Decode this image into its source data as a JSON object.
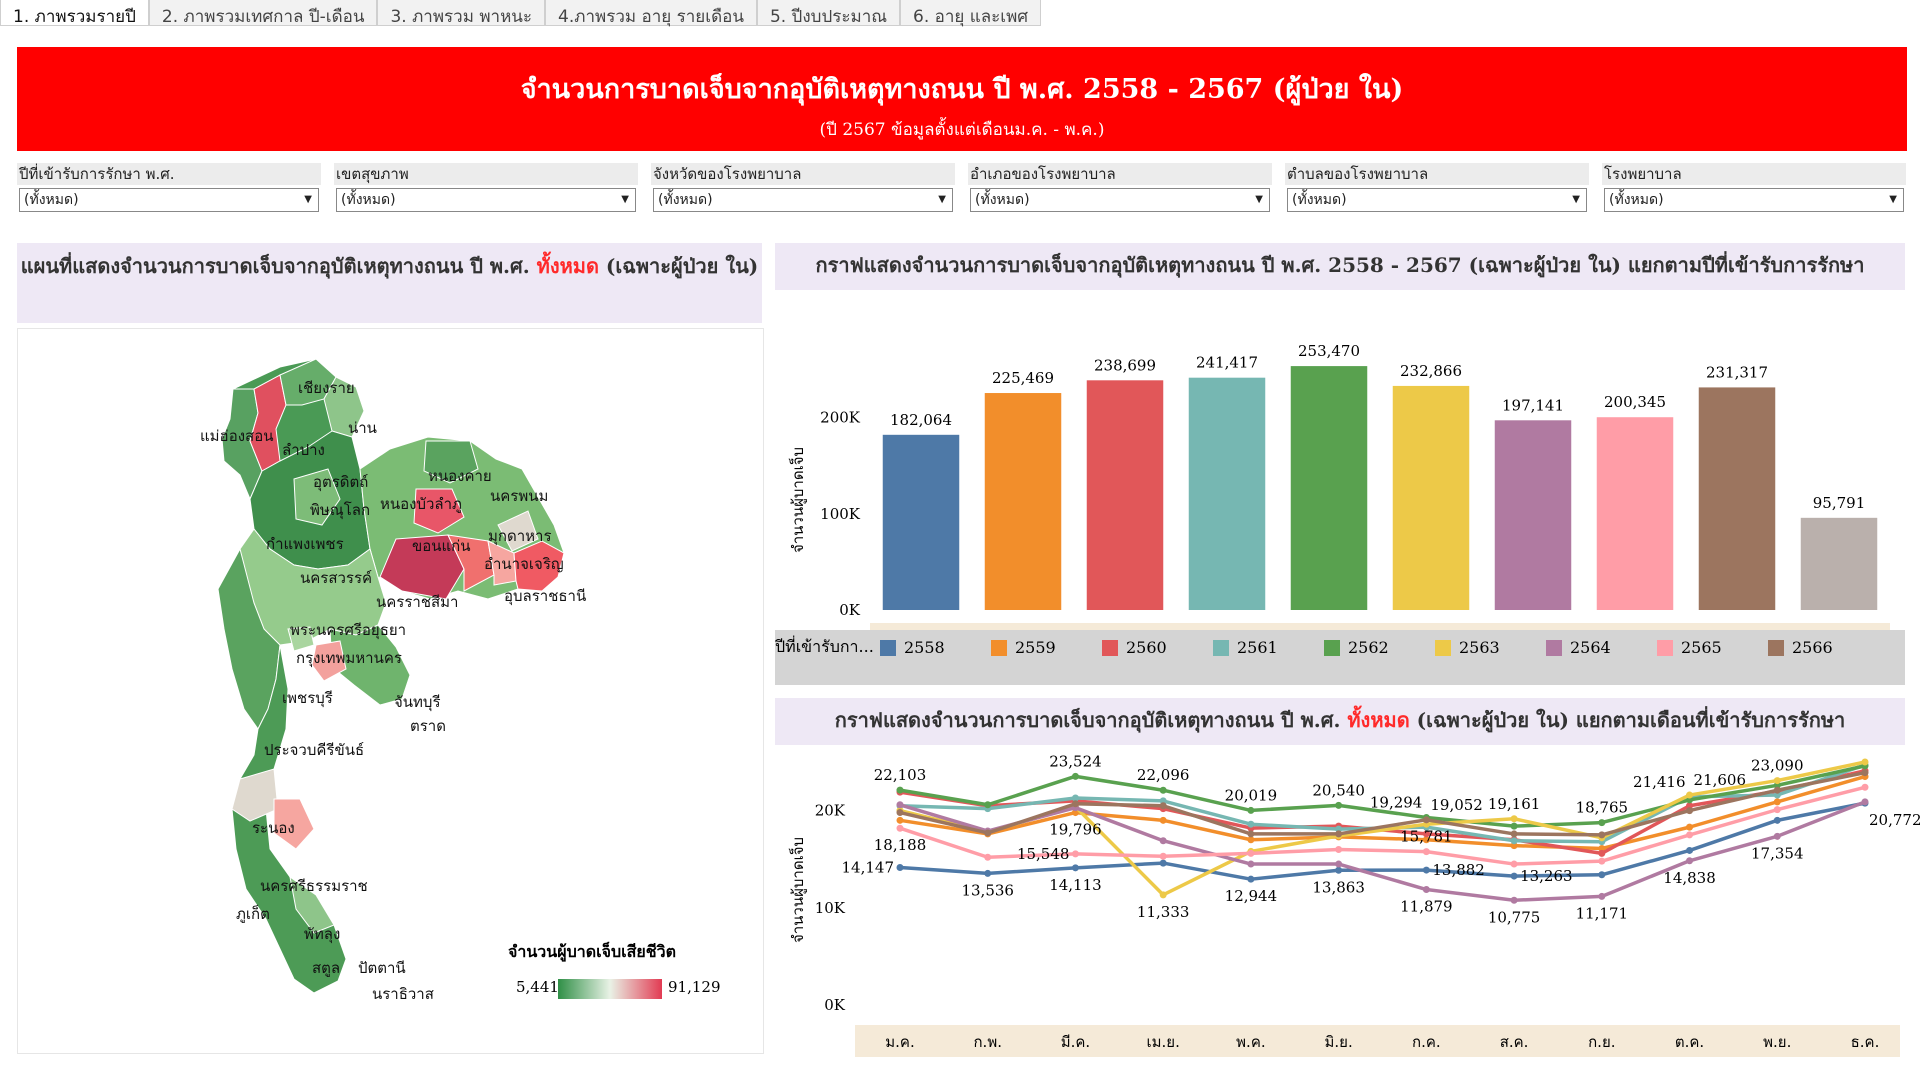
{
  "tabs": [
    "1. ภาพรวมรายปี",
    "2. ภาพรวมเทศกาล ปี-เดือน",
    "3. ภาพรวม พาหนะ",
    "4.ภาพรวม อายุ รายเดือน",
    "5. ปีงบประมาณ",
    "6. อายุ และเพศ"
  ],
  "banner": {
    "title": "จำนวนการบาดเจ็บจากอุบัติเหตุทางถนน ปี พ.ศ. 2558 - 2567 (ผู้ป่วย ใน)",
    "subtitle": "(ปี 2567 ข้อมูลตั้งแต่เดือนม.ค. - พ.ค.)"
  },
  "filters": [
    {
      "label": "ปีที่เข้ารับการรักษา พ.ศ.",
      "value": "(ทั้งหมด)"
    },
    {
      "label": "เขตสุขภาพ",
      "value": "(ทั้งหมด)"
    },
    {
      "label": "จังหวัดของโรงพยาบาล",
      "value": "(ทั้งหมด)"
    },
    {
      "label": "อำเภอของโรงพยาบาล",
      "value": "(ทั้งหมด)"
    },
    {
      "label": "ตำบลของโรงพยาบาล",
      "value": "(ทั้งหมด)"
    },
    {
      "label": "โรงพยาบาล",
      "value": "(ทั้งหมด)"
    }
  ],
  "map_panel": {
    "title_prefix": "แผนที่แสดงจำนวนการบาดเจ็บจากอุบัติเหตุทางถนน ปี พ.ศ.",
    "title_highlight": "ทั้งหมด",
    "title_suffix": "(เฉพาะผู้ป่วย ใน)",
    "legend_title": "จำนวนผู้บาดเจ็บเสียชีวิต",
    "legend_min": "5,441",
    "legend_max": "91,129",
    "provinces": [
      "เชียงราย",
      "แม่ฮ่องสอน",
      "น่าน",
      "ลำปาง",
      "หนองคาย",
      "อุตรดิตถ์",
      "นครพนม",
      "หนองบัวลำภู",
      "พิษณุโลก",
      "มุกดาหาร",
      "ขอนแก่น",
      "กำแพงเพชร",
      "อำนาจเจริญ",
      "นครสวรรค์",
      "อุบลราชธานี",
      "นครราชสีมา",
      "พระนครศรีอยุธยา",
      "กรุงเทพมหานคร",
      "เพชรบุรี",
      "จันทบุรี",
      "ตราด",
      "ประจวบคีรีขันธ์",
      "ระนอง",
      "นครศรีธรรมราช",
      "ภูเก็ต",
      "พัทลุง",
      "สตูล",
      "ปัตตานี",
      "นราธิวาส"
    ]
  },
  "bar_panel": {
    "title": "กราฟแสดงจำนวนการบาดเจ็บจากอุบัติเหตุทางถนน ปี พ.ศ. 2558 - 2567 (เฉพาะผู้ป่วย ใน) แยกตามปีที่เข้ารับการรักษา",
    "legend_label": "ปีที่เข้ารับกา..."
  },
  "line_panel": {
    "title_prefix": "กราฟแสดงจำนวนการบาดเจ็บจากอุบัติเหตุทางถนน ปี พ.ศ.",
    "title_highlight": "ทั้งหมด",
    "title_suffix": "(เฉพาะผู้ป่วย ใน) แยกตามเดือนที่เข้ารับการรักษา"
  },
  "colors": {
    "2558": "#4e79a7",
    "2559": "#f28e2b",
    "2560": "#e15759",
    "2561": "#76b7b2",
    "2562": "#59a14f",
    "2563": "#edc948",
    "2564": "#b07aa1",
    "2565": "#ff9da7",
    "2566": "#9c755f",
    "2567": "#bab0ac"
  },
  "chart_data": [
    {
      "type": "bar",
      "ylabel": "จำนวนผู้บาดเจ็บ",
      "categories": [
        "2558",
        "2559",
        "2560",
        "2561",
        "2562",
        "2563",
        "2564",
        "2565",
        "2566",
        "2567"
      ],
      "values": [
        182064,
        225469,
        238699,
        241417,
        253470,
        232866,
        197141,
        200345,
        231317,
        95791
      ],
      "value_labels": [
        "182,064",
        "225,469",
        "238,699",
        "241,417",
        "253,470",
        "232,866",
        "197,141",
        "200,345",
        "231,317",
        "95,791"
      ],
      "yticks": [
        "0K",
        "100K",
        "200K"
      ],
      "ylim": [
        0,
        265000
      ],
      "legend_entries": [
        "2558",
        "2559",
        "2560",
        "2561",
        "2562",
        "2563",
        "2564",
        "2565",
        "2566"
      ]
    },
    {
      "type": "line",
      "ylabel": "จำนวนผู้บาดเจ็บ",
      "categories": [
        "ม.ค.",
        "ก.พ.",
        "มี.ค.",
        "เม.ย.",
        "พ.ค.",
        "มิ.ย.",
        "ก.ค.",
        "ส.ค.",
        "ก.ย.",
        "ต.ค.",
        "พ.ย.",
        "ธ.ค."
      ],
      "yticks": [
        "0K",
        "10K",
        "20K"
      ],
      "ylim": [
        0,
        25000
      ],
      "series": [
        {
          "name": "2558",
          "values": [
            14147,
            13536,
            14113,
            14600,
            12944,
            13863,
            13882,
            13263,
            13400,
            15900,
            19000,
            20772
          ]
        },
        {
          "name": "2559",
          "values": [
            19000,
            17600,
            19796,
            19000,
            17000,
            17300,
            17000,
            16400,
            16100,
            18300,
            20900,
            23500
          ]
        },
        {
          "name": "2560",
          "values": [
            21900,
            20500,
            21000,
            20200,
            18200,
            18400,
            17600,
            17000,
            15600,
            20500,
            22000,
            24100
          ]
        },
        {
          "name": "2561",
          "values": [
            20500,
            20200,
            21300,
            21000,
            18600,
            18100,
            18300,
            16900,
            16800,
            21416,
            21606,
            24700
          ]
        },
        {
          "name": "2562",
          "values": [
            22103,
            20600,
            23524,
            22096,
            20019,
            20540,
            19294,
            18400,
            18765,
            21100,
            22600,
            24600
          ]
        },
        {
          "name": "2563",
          "values": [
            20000,
            17800,
            20400,
            11333,
            15800,
            17400,
            18600,
            19161,
            17200,
            21600,
            23090,
            25000
          ]
        },
        {
          "name": "2564",
          "values": [
            20600,
            17900,
            20300,
            16900,
            14500,
            14500,
            11879,
            10775,
            11171,
            14838,
            17354,
            20900
          ]
        },
        {
          "name": "2565",
          "values": [
            18188,
            15200,
            15548,
            15300,
            15600,
            16000,
            15781,
            14500,
            14800,
            17500,
            20100,
            22400
          ]
        },
        {
          "name": "2566",
          "values": [
            19800,
            17700,
            20700,
            20500,
            17600,
            17600,
            19052,
            17600,
            17500,
            20000,
            22100,
            23900
          ]
        }
      ],
      "labels": [
        {
          "text": "22,103",
          "cat": 0,
          "value": 22103,
          "pos": "above"
        },
        {
          "text": "23,524",
          "cat": 2,
          "value": 23524,
          "pos": "above"
        },
        {
          "text": "22,096",
          "cat": 3,
          "value": 22096,
          "pos": "above"
        },
        {
          "text": "20,019",
          "cat": 4,
          "value": 20019,
          "pos": "above"
        },
        {
          "text": "20,540",
          "cat": 5,
          "value": 20540,
          "pos": "above"
        },
        {
          "text": "19,294",
          "cat": 6,
          "value": 19294,
          "pos": "above-left"
        },
        {
          "text": "19,052",
          "cat": 6,
          "value": 19052,
          "pos": "above-right"
        },
        {
          "text": "19,161",
          "cat": 7,
          "value": 19161,
          "pos": "above"
        },
        {
          "text": "18,765",
          "cat": 8,
          "value": 18765,
          "pos": "above"
        },
        {
          "text": "21,416",
          "cat": 9,
          "value": 21416,
          "pos": "above-left"
        },
        {
          "text": "21,606",
          "cat": 9,
          "value": 21606,
          "pos": "above-right"
        },
        {
          "text": "23,090",
          "cat": 10,
          "value": 23090,
          "pos": "above"
        },
        {
          "text": "18,188",
          "cat": 0,
          "value": 18188,
          "pos": "below"
        },
        {
          "text": "19,796",
          "cat": 2,
          "value": 19796,
          "pos": "below"
        },
        {
          "text": "15,548",
          "cat": 2,
          "value": 15548,
          "pos": "left"
        },
        {
          "text": "15,781",
          "cat": 6,
          "value": 15781,
          "pos": "above"
        },
        {
          "text": "14,147",
          "cat": 0,
          "value": 14147,
          "pos": "left"
        },
        {
          "text": "13,536",
          "cat": 1,
          "value": 13536,
          "pos": "below"
        },
        {
          "text": "14,113",
          "cat": 2,
          "value": 14113,
          "pos": "below"
        },
        {
          "text": "11,333",
          "cat": 3,
          "value": 11333,
          "pos": "below"
        },
        {
          "text": "12,944",
          "cat": 4,
          "value": 12944,
          "pos": "below"
        },
        {
          "text": "13,863",
          "cat": 5,
          "value": 13863,
          "pos": "below"
        },
        {
          "text": "13,882",
          "cat": 6,
          "value": 13882,
          "pos": "right"
        },
        {
          "text": "13,263",
          "cat": 7,
          "value": 13263,
          "pos": "right"
        },
        {
          "text": "11,879",
          "cat": 6,
          "value": 11879,
          "pos": "below"
        },
        {
          "text": "10,775",
          "cat": 7,
          "value": 10775,
          "pos": "below"
        },
        {
          "text": "11,171",
          "cat": 8,
          "value": 11171,
          "pos": "below"
        },
        {
          "text": "14,838",
          "cat": 9,
          "value": 14838,
          "pos": "below"
        },
        {
          "text": "17,354",
          "cat": 10,
          "value": 17354,
          "pos": "below"
        },
        {
          "text": "20,772",
          "cat": 11,
          "value": 20772,
          "pos": "below-right"
        }
      ]
    }
  ]
}
